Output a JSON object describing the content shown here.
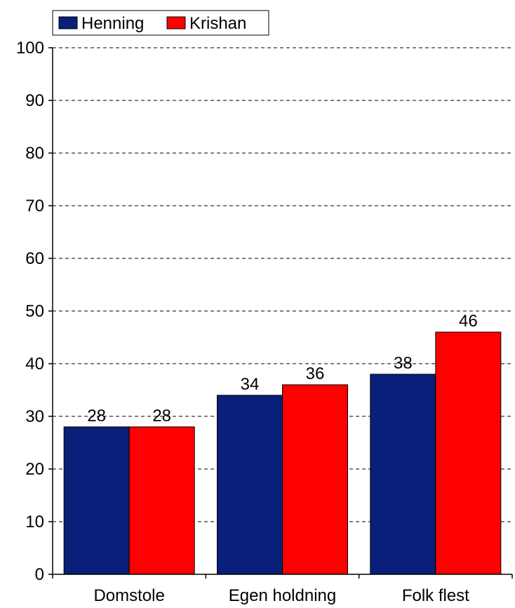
{
  "chart_data": {
    "type": "bar",
    "categories": [
      "Domstole",
      "Egen holdning",
      "Folk flest"
    ],
    "series": [
      {
        "name": "Henning",
        "values": [
          28,
          34,
          38
        ],
        "color": "#0a1f7a"
      },
      {
        "name": "Krishan",
        "values": [
          28,
          36,
          46
        ],
        "color": "#ff0000"
      }
    ],
    "ylim": [
      0,
      100
    ],
    "yticks": [
      0,
      10,
      20,
      30,
      40,
      50,
      60,
      70,
      80,
      90,
      100
    ],
    "grid": true,
    "legend_position": "top-left",
    "data_labels": true
  }
}
